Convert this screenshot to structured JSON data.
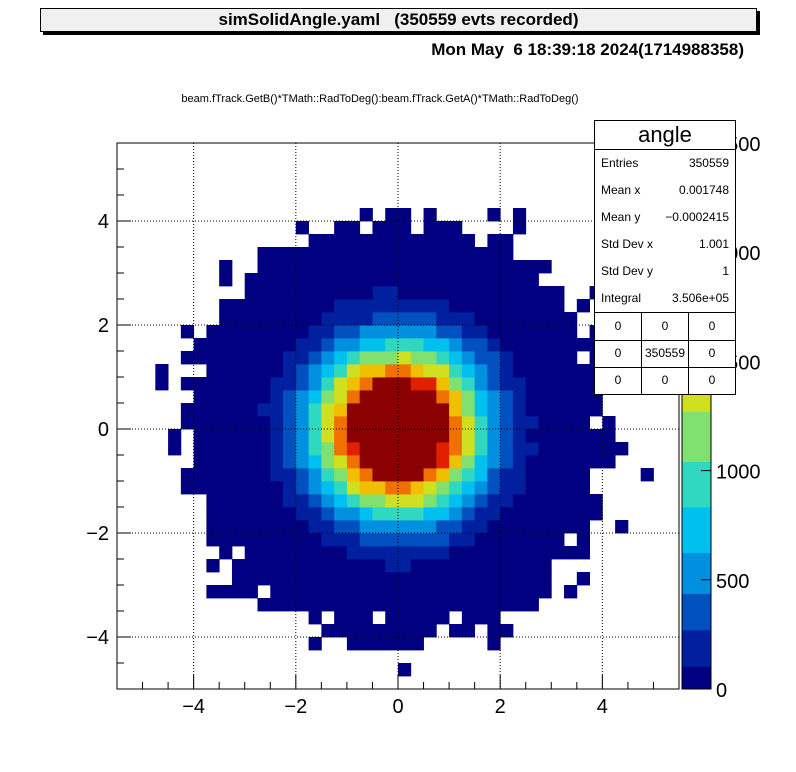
{
  "header": {
    "title": "simSolidAngle.yaml   (350559 evts recorded)",
    "date": "Mon May  6 18:39:18 2024(1714988358)",
    "expression": "beam.fTrack.GetB()*TMath::RadToDeg():beam.fTrack.GetA()*TMath::RadToDeg()"
  },
  "stats": {
    "name": "angle",
    "rows": [
      {
        "label": "Entries",
        "value": "350559"
      },
      {
        "label": "Mean x",
        "value": "0.001748"
      },
      {
        "label": "Mean y",
        "value": "−0.0002415"
      },
      {
        "label": "Std Dev x",
        "value": "1.001"
      },
      {
        "label": "Std Dev y",
        "value": "1"
      },
      {
        "label": "Integral",
        "value": "3.506e+05"
      }
    ],
    "grid": [
      [
        "0",
        "0",
        "0"
      ],
      [
        "0",
        "350559",
        "0"
      ],
      [
        "0",
        "0",
        "0"
      ]
    ]
  },
  "chart_data": {
    "type": "heatmap",
    "title": "",
    "xlabel": "",
    "ylabel": "",
    "xlim": [
      -5.5,
      5.5
    ],
    "ylim": [
      -5.0,
      5.5
    ],
    "bins_x": 40,
    "bins_y": 40,
    "distribution": "2D Gaussian, mean (0, 0), std dev (1.001, 1), total entries 350559",
    "z_range": [
      0,
      2500
    ],
    "x_ticks": [
      "−4",
      "−2",
      "0",
      "2",
      "4"
    ],
    "x_tick_values": [
      -4,
      -2,
      0,
      2,
      4
    ],
    "y_ticks": [
      "−4",
      "−2",
      "0",
      "2",
      "4"
    ],
    "y_tick_values": [
      -4,
      -2,
      0,
      2,
      4
    ],
    "z_ticks": [
      "0",
      "500",
      "1000",
      "1500",
      "2000",
      "2500"
    ],
    "z_tick_values": [
      0,
      500,
      1000,
      1500,
      2000,
      2500
    ],
    "grid": true,
    "palette": [
      "#000080",
      "#0020a0",
      "#0050c0",
      "#0090e0",
      "#00c0f0",
      "#30d8c0",
      "#80e070",
      "#d0e020",
      "#f0c000",
      "#f07000",
      "#e02000",
      "#8b0000"
    ]
  }
}
